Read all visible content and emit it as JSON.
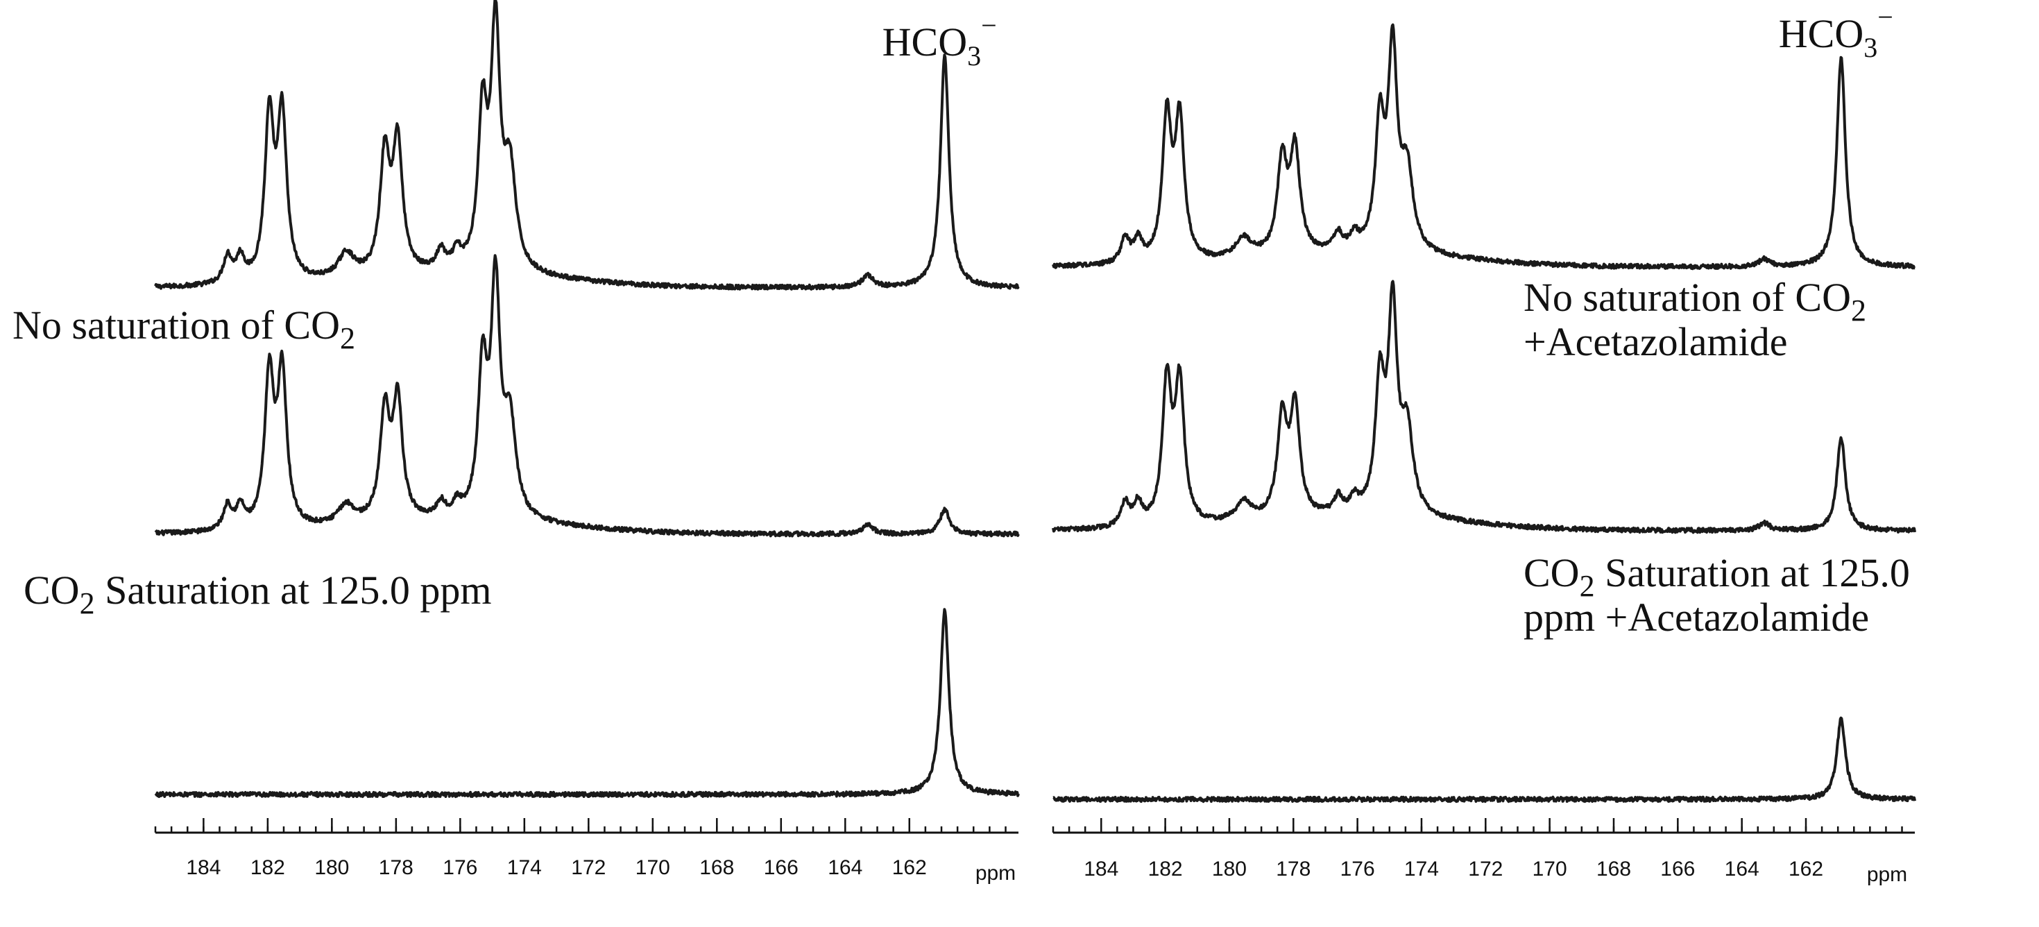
{
  "chart_data": [
    {
      "type": "line",
      "panel": "left",
      "x_axis": {
        "unit_label": "ppm",
        "reversed": true,
        "xlim": [
          185.5,
          158.6
        ],
        "major_ticks": [
          184,
          182,
          180,
          178,
          176,
          174,
          172,
          170,
          168,
          166,
          164,
          162
        ],
        "minor_step": 0.5
      },
      "species_label": {
        "main": "HCO",
        "sub": "3",
        "sup": "−"
      },
      "species_position": 160.9,
      "series": [
        {
          "caption": {
            "pre": "No saturation of CO",
            "sub": "2",
            "post": ""
          },
          "peaks": [
            {
              "ppm": 183.25,
              "height": 0.11,
              "width": 0.16
            },
            {
              "ppm": 182.85,
              "height": 0.1,
              "width": 0.16
            },
            {
              "ppm": 181.95,
              "height": 0.66,
              "width": 0.17
            },
            {
              "ppm": 181.55,
              "height": 0.67,
              "width": 0.17
            },
            {
              "ppm": 179.55,
              "height": 0.1,
              "width": 0.3
            },
            {
              "ppm": 178.35,
              "height": 0.48,
              "width": 0.18
            },
            {
              "ppm": 177.95,
              "height": 0.53,
              "width": 0.18
            },
            {
              "ppm": 176.6,
              "height": 0.08,
              "width": 0.16
            },
            {
              "ppm": 176.1,
              "height": 0.07,
              "width": 0.16
            },
            {
              "ppm": 175.3,
              "height": 0.62,
              "width": 0.17
            },
            {
              "ppm": 174.9,
              "height": 0.96,
              "width": 0.17
            },
            {
              "ppm": 174.45,
              "height": 0.4,
              "width": 0.22
            },
            {
              "ppm": 163.3,
              "height": 0.05,
              "width": 0.2
            },
            {
              "ppm": 160.9,
              "height": 0.95,
              "width": 0.16
            }
          ]
        },
        {
          "caption": {
            "pre": "CO",
            "sub": "2",
            "post": " Saturation at 125.0 ppm"
          },
          "peaks": [
            {
              "ppm": 183.25,
              "height": 0.1,
              "width": 0.16
            },
            {
              "ppm": 182.85,
              "height": 0.09,
              "width": 0.16
            },
            {
              "ppm": 181.95,
              "height": 0.62,
              "width": 0.17
            },
            {
              "ppm": 181.55,
              "height": 0.63,
              "width": 0.17
            },
            {
              "ppm": 179.55,
              "height": 0.08,
              "width": 0.3
            },
            {
              "ppm": 178.35,
              "height": 0.44,
              "width": 0.18
            },
            {
              "ppm": 177.95,
              "height": 0.48,
              "width": 0.18
            },
            {
              "ppm": 176.6,
              "height": 0.06,
              "width": 0.16
            },
            {
              "ppm": 176.1,
              "height": 0.05,
              "width": 0.16
            },
            {
              "ppm": 175.3,
              "height": 0.59,
              "width": 0.17
            },
            {
              "ppm": 174.9,
              "height": 0.92,
              "width": 0.17
            },
            {
              "ppm": 174.45,
              "height": 0.38,
              "width": 0.22
            },
            {
              "ppm": 163.3,
              "height": 0.04,
              "width": 0.2
            },
            {
              "ppm": 160.9,
              "height": 0.1,
              "width": 0.18
            }
          ]
        },
        {
          "caption": null,
          "peaks": [
            {
              "ppm": 160.9,
              "height": 0.75,
              "width": 0.16
            }
          ]
        }
      ]
    },
    {
      "type": "line",
      "panel": "right",
      "x_axis": {
        "unit_label": "ppm",
        "reversed": true,
        "xlim": [
          185.5,
          158.6
        ],
        "major_ticks": [
          184,
          182,
          180,
          178,
          176,
          174,
          172,
          170,
          168,
          166,
          164,
          162
        ],
        "minor_step": 0.5
      },
      "species_label": {
        "main": "HCO",
        "sub": "3",
        "sup": "−"
      },
      "species_position": 160.9,
      "series": [
        {
          "caption": {
            "pre": "No saturation of CO",
            "sub": "2",
            "post": "",
            "line2": "+Acetazolamide"
          },
          "peaks": [
            {
              "ppm": 183.25,
              "height": 0.1,
              "width": 0.16
            },
            {
              "ppm": 182.85,
              "height": 0.09,
              "width": 0.16
            },
            {
              "ppm": 181.95,
              "height": 0.58,
              "width": 0.17
            },
            {
              "ppm": 181.55,
              "height": 0.57,
              "width": 0.17
            },
            {
              "ppm": 179.55,
              "height": 0.08,
              "width": 0.3
            },
            {
              "ppm": 178.35,
              "height": 0.38,
              "width": 0.18
            },
            {
              "ppm": 177.95,
              "height": 0.42,
              "width": 0.18
            },
            {
              "ppm": 176.6,
              "height": 0.07,
              "width": 0.16
            },
            {
              "ppm": 176.1,
              "height": 0.06,
              "width": 0.16
            },
            {
              "ppm": 175.3,
              "height": 0.5,
              "width": 0.17
            },
            {
              "ppm": 174.9,
              "height": 0.8,
              "width": 0.17
            },
            {
              "ppm": 174.45,
              "height": 0.32,
              "width": 0.22
            },
            {
              "ppm": 163.3,
              "height": 0.03,
              "width": 0.2
            },
            {
              "ppm": 160.9,
              "height": 0.86,
              "width": 0.16
            }
          ]
        },
        {
          "caption": {
            "pre": "CO",
            "sub": "2",
            "post": " Saturation at 125.0",
            "line2": "ppm +Acetazolamide"
          },
          "peaks": [
            {
              "ppm": 183.25,
              "height": 0.1,
              "width": 0.16
            },
            {
              "ppm": 182.85,
              "height": 0.09,
              "width": 0.16
            },
            {
              "ppm": 181.95,
              "height": 0.58,
              "width": 0.17
            },
            {
              "ppm": 181.55,
              "height": 0.57,
              "width": 0.17
            },
            {
              "ppm": 179.55,
              "height": 0.08,
              "width": 0.3
            },
            {
              "ppm": 178.35,
              "height": 0.4,
              "width": 0.18
            },
            {
              "ppm": 177.95,
              "height": 0.44,
              "width": 0.18
            },
            {
              "ppm": 176.6,
              "height": 0.07,
              "width": 0.16
            },
            {
              "ppm": 176.1,
              "height": 0.06,
              "width": 0.16
            },
            {
              "ppm": 175.3,
              "height": 0.52,
              "width": 0.17
            },
            {
              "ppm": 174.9,
              "height": 0.82,
              "width": 0.17
            },
            {
              "ppm": 174.45,
              "height": 0.34,
              "width": 0.22
            },
            {
              "ppm": 163.3,
              "height": 0.03,
              "width": 0.2
            },
            {
              "ppm": 160.9,
              "height": 0.38,
              "width": 0.16
            }
          ]
        },
        {
          "caption": null,
          "peaks": [
            {
              "ppm": 160.9,
              "height": 0.33,
              "width": 0.16
            }
          ]
        }
      ]
    }
  ]
}
